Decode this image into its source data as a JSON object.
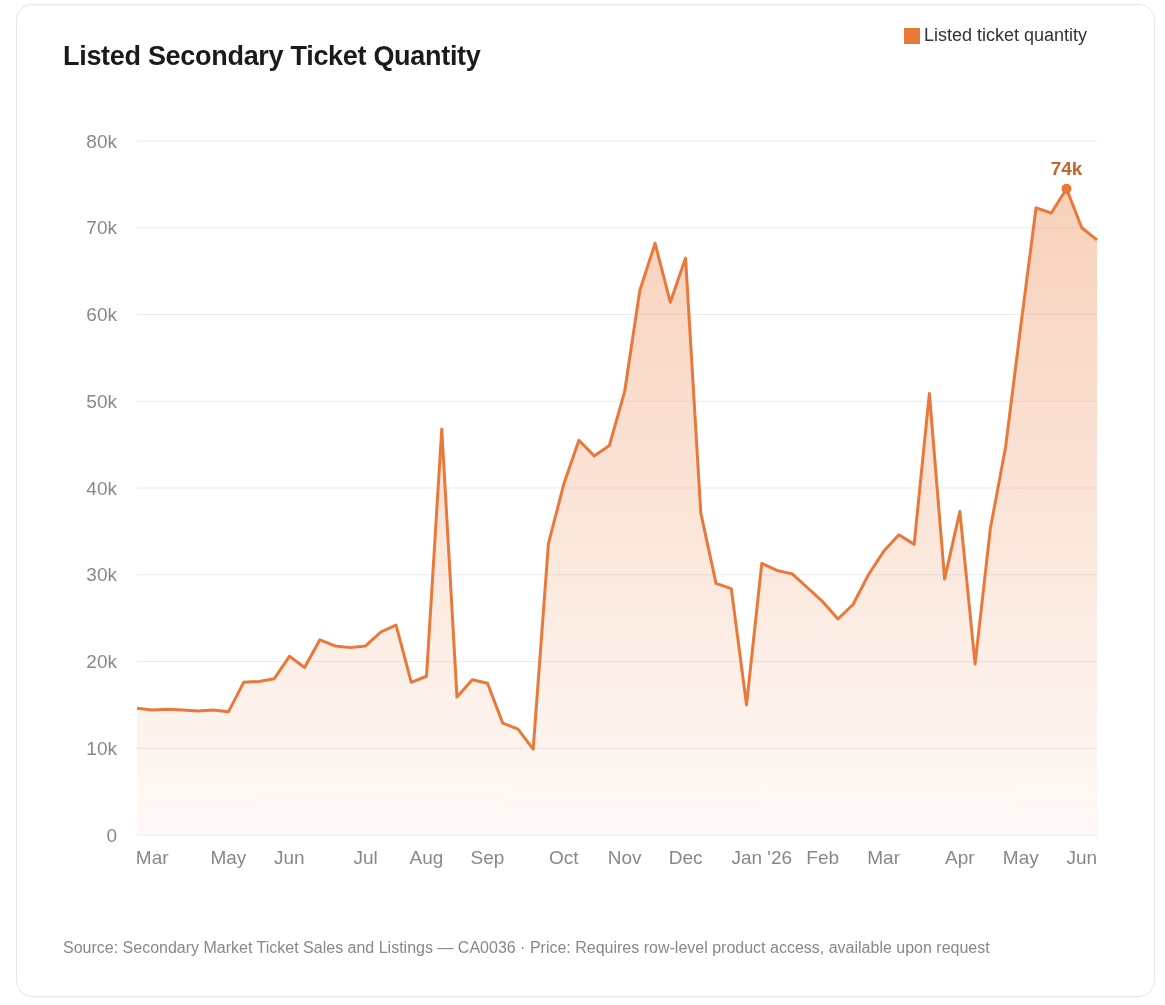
{
  "chart_data": {
    "type": "area",
    "title": "Listed Secondary Ticket Quantity",
    "categories": [
      null,
      "Mar",
      null,
      null,
      null,
      null,
      "May",
      null,
      null,
      null,
      "Jun",
      null,
      null,
      null,
      null,
      "Jul",
      null,
      null,
      null,
      "Aug",
      null,
      null,
      null,
      "Sep",
      null,
      null,
      null,
      null,
      "Oct",
      null,
      null,
      null,
      "Nov",
      null,
      null,
      null,
      "Dec",
      null,
      null,
      null,
      null,
      "Jan '26",
      null,
      null,
      null,
      "Feb",
      null,
      null,
      null,
      "Mar",
      null,
      null,
      null,
      null,
      "Apr",
      null,
      null,
      null,
      "May",
      null,
      null,
      null,
      "Jun",
      null
    ],
    "series": [
      {
        "name": "Listed ticket quantity",
        "color": "#e8793a",
        "values": [
          14600,
          14400,
          14500,
          14400,
          14300,
          14400,
          14200,
          17600,
          17700,
          18000,
          20600,
          19300,
          22500,
          21800,
          21600,
          21800,
          23400,
          24200,
          17600,
          18300,
          46800,
          15900,
          17900,
          17500,
          12900,
          12200,
          9900,
          33600,
          40400,
          45500,
          43700,
          44900,
          51100,
          62800,
          68200,
          61400,
          66500,
          37100,
          29000,
          28400,
          15000,
          31300,
          30500,
          30100,
          28500,
          26900,
          24900,
          26600,
          30000,
          32700,
          34600,
          33500,
          50900,
          29500,
          37300,
          19700,
          35300,
          44700,
          58700,
          72300,
          71700,
          74500,
          70000,
          68600
        ],
        "value_labels": [
          null,
          null,
          null,
          null,
          null,
          null,
          null,
          null,
          null,
          null,
          null,
          null,
          null,
          null,
          null,
          null,
          null,
          null,
          null,
          null,
          null,
          null,
          null,
          null,
          null,
          null,
          null,
          null,
          null,
          null,
          null,
          null,
          null,
          null,
          null,
          null,
          null,
          null,
          null,
          null,
          null,
          null,
          null,
          null,
          null,
          null,
          null,
          null,
          null,
          null,
          null,
          null,
          null,
          null,
          null,
          null,
          null,
          null,
          null,
          null,
          null,
          "74k",
          null,
          null
        ]
      }
    ],
    "ylim": [
      0,
      80000
    ],
    "yticks": [
      {
        "value": 0,
        "label": "0"
      },
      {
        "value": 10000,
        "label": "10k"
      },
      {
        "value": 20000,
        "label": "20k"
      },
      {
        "value": 30000,
        "label": "30k"
      },
      {
        "value": 40000,
        "label": "40k"
      },
      {
        "value": 50000,
        "label": "50k"
      },
      {
        "value": 60000,
        "label": "60k"
      },
      {
        "value": 70000,
        "label": "70k"
      },
      {
        "value": 80000,
        "label": "80k"
      }
    ],
    "grid": "y",
    "legend": "top right",
    "annotations": [
      "Source: Secondary Market Ticket Sales and Listings — CA0036  ·  Price: Requires row-level product access, available upon request"
    ]
  }
}
